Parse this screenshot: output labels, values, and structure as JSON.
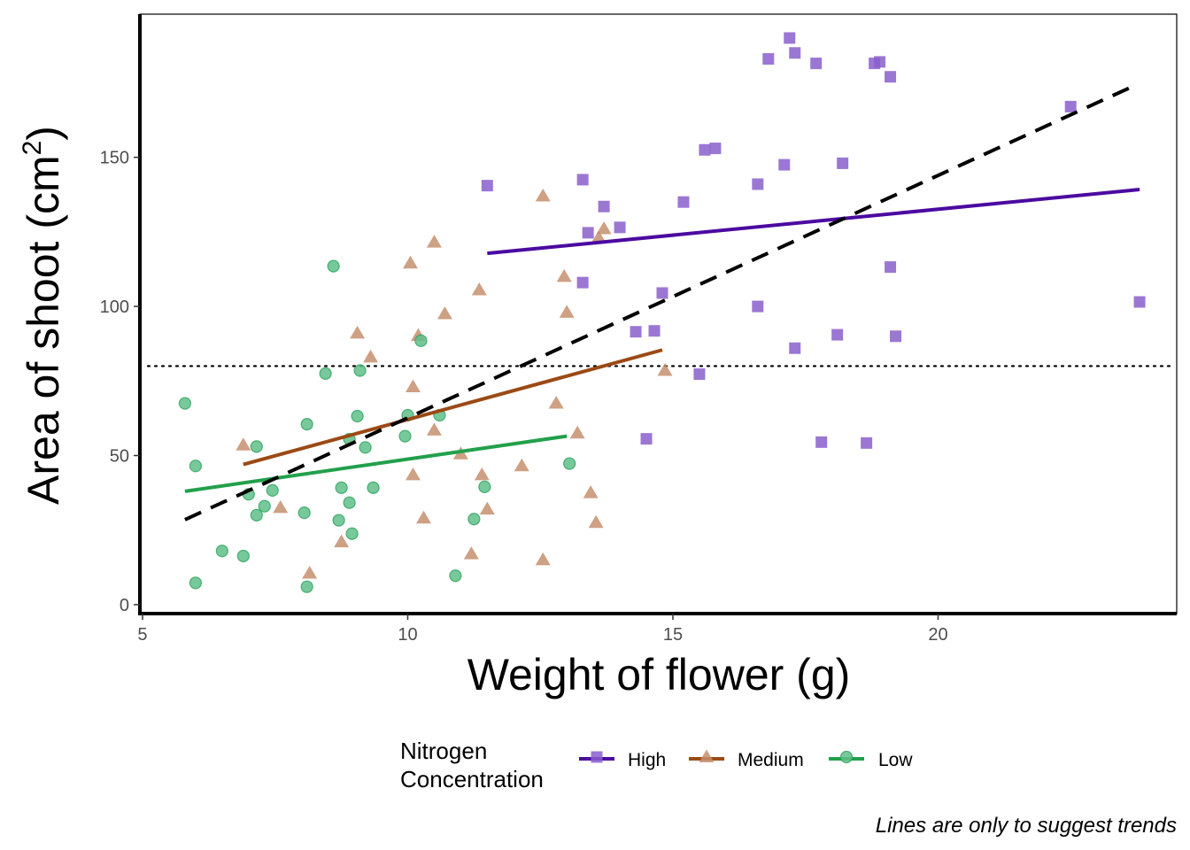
{
  "chart_data": {
    "type": "scatter",
    "xlabel": "Weight of flower (g)",
    "ylabel": "Area of shoot (cm",
    "ylabel_sup": "2",
    "ylabel_end": ")",
    "xlim": [
      4.95,
      24.5
    ],
    "ylim": [
      -3,
      198
    ],
    "x_ticks": [
      5,
      10,
      15,
      20
    ],
    "y_ticks": [
      0,
      50,
      100,
      150
    ],
    "grid": false,
    "legend": {
      "title_line1": "Nitrogen",
      "title_line2": "Concentration",
      "placement": "bottom",
      "entries": [
        "High",
        "Medium",
        "Low"
      ]
    },
    "caption": "Lines are only to suggest trends",
    "reference_line": {
      "y": 80,
      "style": "dotted"
    },
    "overall_trend": {
      "x": [
        5.8,
        23.7
      ],
      "y": [
        28.5,
        174
      ],
      "style": "dashed"
    },
    "series": [
      {
        "name": "High",
        "marker": "square",
        "color": "#8a5fcd",
        "line_color": "#4b0aa0",
        "trend": {
          "x": [
            11.5,
            23.8
          ],
          "y": [
            117.8,
            139.2
          ]
        },
        "points": [
          [
            17.2,
            190
          ],
          [
            16.8,
            183
          ],
          [
            17.3,
            185
          ],
          [
            17.7,
            181.5
          ],
          [
            18.8,
            181.5
          ],
          [
            18.9,
            182
          ],
          [
            19.1,
            177
          ],
          [
            22.5,
            167
          ],
          [
            15.8,
            153
          ],
          [
            15.6,
            152.5
          ],
          [
            17.1,
            147.5
          ],
          [
            18.2,
            148
          ],
          [
            16.6,
            141
          ],
          [
            11.5,
            140.5
          ],
          [
            13.3,
            142.5
          ],
          [
            13.7,
            133.5
          ],
          [
            15.2,
            135
          ],
          [
            13.4,
            124.7
          ],
          [
            14.0,
            126.5
          ],
          [
            19.1,
            113.2
          ],
          [
            13.3,
            108
          ],
          [
            14.8,
            104.5
          ],
          [
            16.6,
            100
          ],
          [
            23.8,
            101.5
          ],
          [
            14.3,
            91.5
          ],
          [
            14.65,
            91.8
          ],
          [
            18.1,
            90.5
          ],
          [
            19.2,
            90
          ],
          [
            17.3,
            86
          ],
          [
            15.5,
            77.3
          ],
          [
            14.5,
            55.6
          ],
          [
            17.8,
            54.5
          ],
          [
            18.65,
            54.2
          ]
        ]
      },
      {
        "name": "Medium",
        "marker": "triangle",
        "color": "#c58f6f",
        "line_color": "#9b4a15",
        "trend": {
          "x": [
            6.9,
            14.8
          ],
          "y": [
            47,
            85.4
          ]
        },
        "points": [
          [
            12.55,
            137
          ],
          [
            10.5,
            121.5
          ],
          [
            13.7,
            126
          ],
          [
            13.6,
            123
          ],
          [
            10.05,
            114.5
          ],
          [
            11.35,
            105.5
          ],
          [
            12.95,
            110
          ],
          [
            10.7,
            97.5
          ],
          [
            13.0,
            98
          ],
          [
            9.05,
            91
          ],
          [
            10.2,
            90.2
          ],
          [
            9.3,
            83
          ],
          [
            14.85,
            78.5
          ],
          [
            10.1,
            73
          ],
          [
            12.8,
            67.5
          ],
          [
            10.5,
            58.5
          ],
          [
            13.2,
            57.5
          ],
          [
            6.9,
            53.5
          ],
          [
            11.0,
            50.5
          ],
          [
            12.15,
            46.5
          ],
          [
            10.1,
            43.5
          ],
          [
            11.4,
            43.5
          ],
          [
            13.45,
            37.5
          ],
          [
            7.6,
            32.5
          ],
          [
            11.5,
            32
          ],
          [
            10.3,
            29
          ],
          [
            13.55,
            27.5
          ],
          [
            8.75,
            21
          ],
          [
            11.2,
            17
          ],
          [
            12.55,
            15
          ],
          [
            8.15,
            10.5
          ]
        ]
      },
      {
        "name": "Low",
        "marker": "circle",
        "color": "#5fc08a",
        "line_color": "#22a04b",
        "trend": {
          "x": [
            5.8,
            13.0
          ],
          "y": [
            38,
            56.5
          ]
        },
        "points": [
          [
            8.6,
            113.5
          ],
          [
            10.25,
            88.5
          ],
          [
            8.45,
            77.5
          ],
          [
            9.1,
            78.5
          ],
          [
            5.8,
            67.5
          ],
          [
            8.1,
            60.5
          ],
          [
            9.05,
            63.2
          ],
          [
            10.0,
            63.5
          ],
          [
            10.6,
            63.5
          ],
          [
            9.95,
            56.5
          ],
          [
            8.9,
            55.5
          ],
          [
            7.15,
            53
          ],
          [
            9.2,
            52.7
          ],
          [
            6.0,
            46.5
          ],
          [
            13.05,
            47.3
          ],
          [
            11.45,
            39.5
          ],
          [
            8.75,
            39.2
          ],
          [
            9.35,
            39.2
          ],
          [
            7.45,
            38.3
          ],
          [
            7.0,
            37
          ],
          [
            8.9,
            34.2
          ],
          [
            7.3,
            33
          ],
          [
            8.05,
            30.8
          ],
          [
            7.15,
            30
          ],
          [
            8.7,
            28.3
          ],
          [
            11.25,
            28.7
          ],
          [
            8.95,
            23.8
          ],
          [
            6.5,
            18
          ],
          [
            6.9,
            16.3
          ],
          [
            10.9,
            9.7
          ],
          [
            6.0,
            7.3
          ],
          [
            8.1,
            6
          ]
        ]
      }
    ]
  }
}
